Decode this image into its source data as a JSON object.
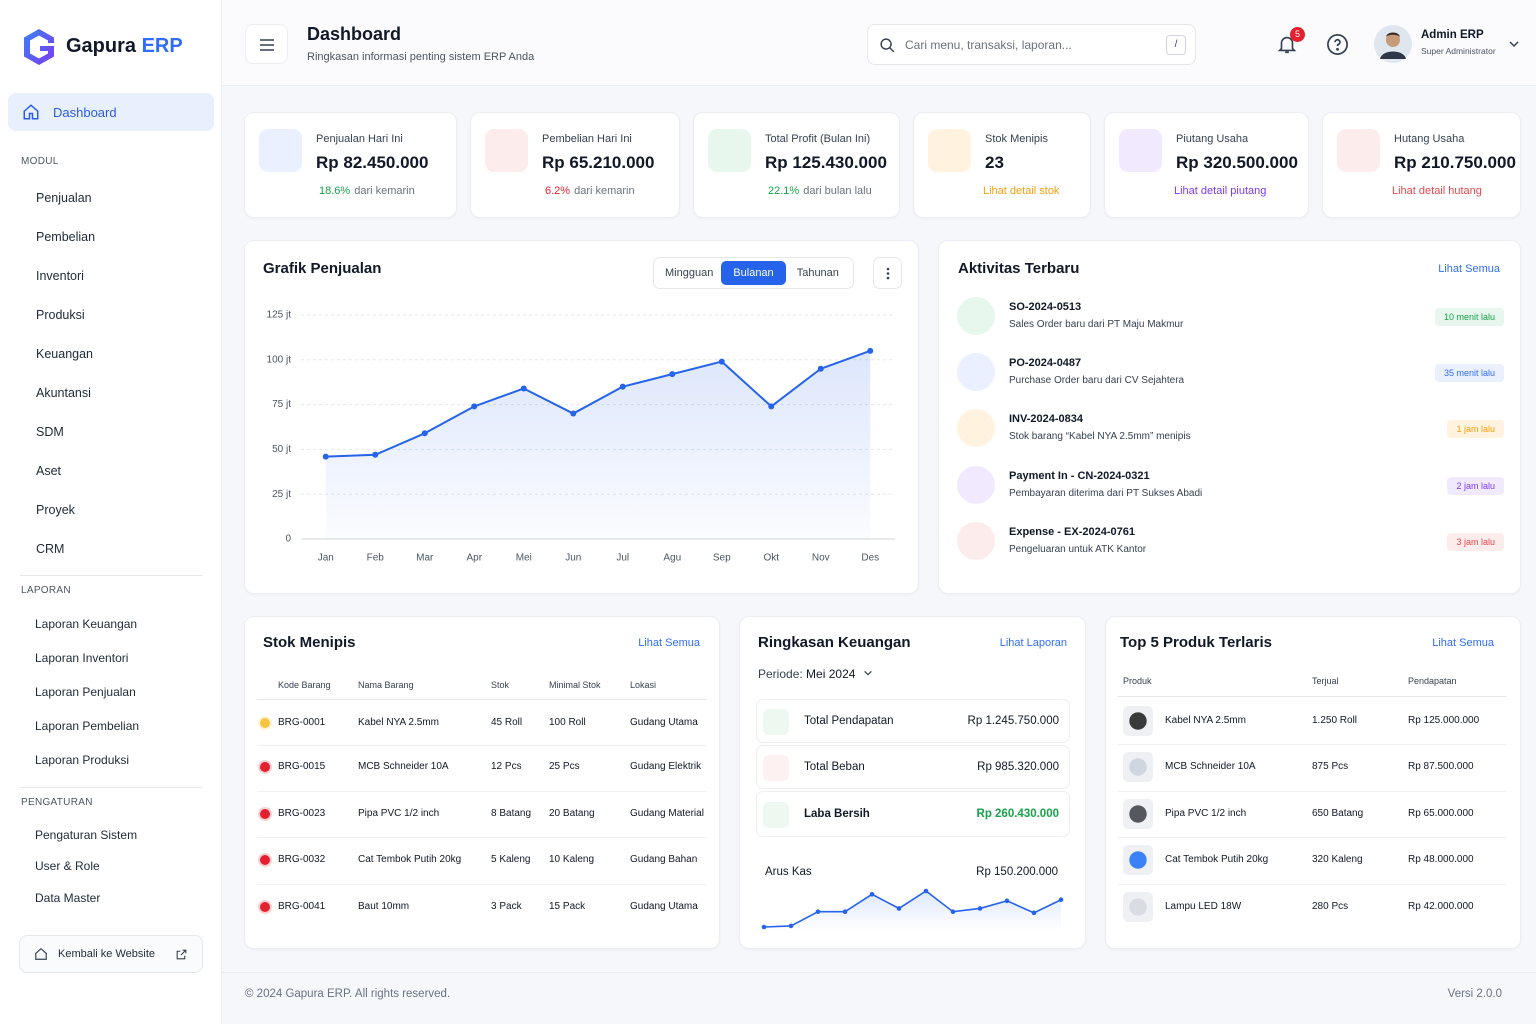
{
  "sidebar": {
    "brand": "Gapura",
    "brand_accent": "ERP",
    "active": "Dashboard",
    "sections": [
      {
        "title": "MODUL",
        "items": [
          "Penjualan",
          "Pembelian",
          "Inventori",
          "Produksi",
          "Keuangan",
          "Akuntansi",
          "SDM",
          "Aset",
          "Proyek",
          "CRM"
        ]
      },
      {
        "title": "LAPORAN",
        "items": [
          "Laporan Keuangan",
          "Laporan Inventori",
          "Laporan Penjualan",
          "Laporan Pembelian",
          "Laporan Produksi"
        ]
      },
      {
        "title": "PENGATURAN",
        "items": [
          "Pengaturan Sistem",
          "User & Role",
          "Data Master"
        ]
      }
    ],
    "back": "Kembali ke Website"
  },
  "header": {
    "title": "Dashboard",
    "subtitle": "Ringkasan informasi penting sistem ERP Anda",
    "search_placeholder": "Cari menu, transaksi, laporan...",
    "search_shortcut": "/",
    "notifications": 5,
    "user_name": "Admin ERP",
    "user_role": "Super Administrator"
  },
  "stats": [
    {
      "label": "Penjualan Hari Ini",
      "value": "Rp 82.450.000",
      "delta": "18.6%",
      "direction": "up",
      "note": "dari kemarin",
      "color": "#2f6df6",
      "bg": "#eaf0ff"
    },
    {
      "label": "Pembelian Hari Ini",
      "value": "Rp 65.210.000",
      "delta": "6.2%",
      "direction": "down",
      "note": "dari kemarin",
      "color": "#e5484d",
      "bg": "#fdecec"
    },
    {
      "label": "Total Profit (Bulan Ini)",
      "value": "Rp 125.430.000",
      "delta": "22.1%",
      "direction": "up",
      "note": "dari bulan lalu",
      "color": "#16a34a",
      "bg": "#e7f7ee"
    },
    {
      "label": "Stok Menipis",
      "value": "23",
      "link": "Lihat detail stok",
      "color": "#f59e0b",
      "bg": "#fff3e0"
    },
    {
      "label": "Piutang Usaha",
      "value": "Rp 320.500.000",
      "link": "Lihat detail piutang",
      "color": "#7c3aed",
      "bg": "#f1eafe"
    },
    {
      "label": "Hutang Usaha",
      "value": "Rp 210.750.000",
      "link": "Lihat detail hutang",
      "color": "#e5484d",
      "bg": "#fdecec"
    }
  ],
  "chart_tabs": {
    "items": [
      "Mingguan",
      "Bulanan",
      "Tahunan"
    ],
    "active": "Bulanan"
  },
  "chart_data": {
    "type": "line",
    "title": "Grafik Penjualan",
    "categories": [
      "Jan",
      "Feb",
      "Mar",
      "Apr",
      "Mei",
      "Jun",
      "Jul",
      "Agu",
      "Sep",
      "Okt",
      "Nov",
      "Des"
    ],
    "series": [
      {
        "name": "Penjualan",
        "color": "#2563eb",
        "values": [
          46,
          47,
          59,
          74,
          84,
          70,
          85,
          92,
          99,
          74,
          95,
          105
        ]
      }
    ],
    "ylim": [
      0,
      125
    ],
    "yticks": [
      0,
      {
        "value": 25,
        "label": "25 jt"
      },
      {
        "value": 50,
        "label": "50 jt"
      },
      {
        "value": 75,
        "label": "75 jt"
      },
      {
        "value": 100,
        "label": "100 jt"
      },
      {
        "value": 125,
        "label": "125 jt"
      }
    ],
    "grid": true
  },
  "activities": {
    "title": "Aktivitas Terbaru",
    "link": "Lihat Semua",
    "items": [
      {
        "title": "SO-2024-0513",
        "desc": "Sales Order baru dari PT Maju Makmur",
        "time": "10 menit lalu",
        "color": "#16a34a",
        "bg": "#e7f7ee"
      },
      {
        "title": "PO-2024-0487",
        "desc": "Purchase Order baru dari CV Sejahtera",
        "time": "35 menit lalu",
        "color": "#2f6df6",
        "bg": "#eaf0ff"
      },
      {
        "title": "INV-2024-0834",
        "desc": "Stok barang “Kabel NYA 2.5mm” menipis",
        "time": "1 jam lalu",
        "color": "#f59e0b",
        "bg": "#fff3e0"
      },
      {
        "title": "Payment In - CN-2024-0321",
        "desc": "Pembayaran diterima dari PT Sukses Abadi",
        "time": "2 jam lalu",
        "color": "#7c3aed",
        "bg": "#f1eafe"
      },
      {
        "title": "Expense - EX-2024-0761",
        "desc": "Pengeluaran untuk ATK Kantor",
        "time": "3 jam lalu",
        "color": "#e5484d",
        "bg": "#fdecec"
      }
    ]
  },
  "low_stock": {
    "title": "Stok Menipis",
    "link": "Lihat Semua",
    "columns": [
      "Kode Barang",
      "Nama Barang",
      "Stok",
      "Minimal Stok",
      "Lokasi"
    ],
    "rows": [
      [
        "BRG-0001",
        "Kabel NYA 2.5mm",
        "45 Roll",
        "100 Roll",
        "Gudang Utama"
      ],
      [
        "BRG-0015",
        "MCB Schneider 10A",
        "12 Pcs",
        "25 Pcs",
        "Gudang Elektrik"
      ],
      [
        "BRG-0023",
        "Pipa PVC 1/2 inch",
        "8 Batang",
        "20 Batang",
        "Gudang Material"
      ],
      [
        "BRG-0032",
        "Cat Tembok Putih 20kg",
        "5 Kaleng",
        "10 Kaleng",
        "Gudang Bahan"
      ],
      [
        "BRG-0041",
        "Baut 10mm",
        "3 Pack",
        "15 Pack",
        "Gudang Utama"
      ]
    ],
    "dot_colors": [
      "#f5c542",
      "#e5202e",
      "#e5202e",
      "#e5202e",
      "#e5202e"
    ]
  },
  "finance": {
    "title": "Ringkasan Keuangan",
    "link": "Lihat Laporan",
    "period_label": "Periode:",
    "period": "Mei 2024",
    "rows": [
      {
        "label": "Total Pendapatan",
        "value": "Rp 1.245.750.000",
        "color": "#16a34a"
      },
      {
        "label": "Total Beban",
        "value": "Rp 985.320.000",
        "color": "#e5484d"
      },
      {
        "label": "Laba Bersih",
        "value": "Rp 260.430.000",
        "color": "#16a34a"
      }
    ],
    "cash_flow_label": "Arus Kas",
    "cash_flow_value": "Rp 150.200.000",
    "cash_flow": [
      2,
      3,
      16,
      16,
      32,
      19,
      35,
      16,
      19,
      26,
      15,
      27
    ]
  },
  "top_products": {
    "title": "Top 5 Produk Terlaris",
    "link": "Lihat Semua",
    "columns": [
      "Produk",
      "Terjual",
      "Pendapatan"
    ],
    "rows": [
      [
        "Kabel NYA 2.5mm",
        "1.250 Roll",
        "Rp 125.000.000"
      ],
      [
        "MCB Schneider 10A",
        "875 Pcs",
        "Rp 87.500.000"
      ],
      [
        "Pipa PVC 1/2 inch",
        "650 Batang",
        "Rp 65.000.000"
      ],
      [
        "Cat Tembok Putih 20kg",
        "320 Kaleng",
        "Rp 48.000.000"
      ],
      [
        "Lampu LED 18W",
        "280 Pcs",
        "Rp 42.000.000"
      ]
    ]
  },
  "footer": {
    "copyright": "© 2024 Gapura ERP. All rights reserved.",
    "version": "Versi 2.0.0"
  }
}
